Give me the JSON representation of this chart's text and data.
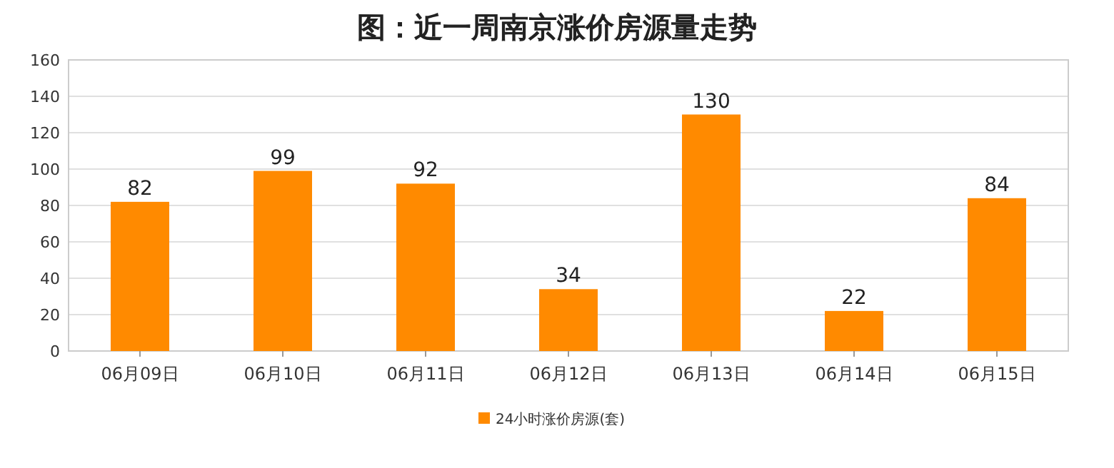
{
  "chart_data": {
    "type": "bar",
    "title": "图：近一周南京涨价房源量走势",
    "categories": [
      "06月09日",
      "06月10日",
      "06月11日",
      "06月12日",
      "06月13日",
      "06月14日",
      "06月15日"
    ],
    "series": [
      {
        "name": "24小时涨价房源(套)",
        "color": "#ff8a00",
        "values": [
          82,
          99,
          92,
          34,
          130,
          22,
          84
        ]
      }
    ],
    "ylim": [
      0,
      160
    ],
    "yticks": [
      0,
      20,
      40,
      60,
      80,
      100,
      120,
      140,
      160
    ],
    "grid": "y",
    "legend": "bottom",
    "data_labels": true
  }
}
